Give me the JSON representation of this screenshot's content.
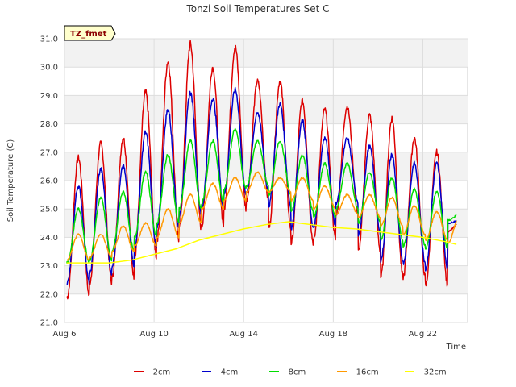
{
  "chart_data": {
    "type": "line",
    "title": "Tonzi Soil Temperatures Set C",
    "xlabel": "Time",
    "ylabel": "Soil Temperature (C)",
    "badge": "TZ_fmet",
    "ylim": [
      21.0,
      31.0
    ],
    "y_ticks": [
      "21.0",
      "22.0",
      "23.0",
      "24.0",
      "25.0",
      "26.0",
      "27.0",
      "28.0",
      "29.0",
      "30.0",
      "31.0"
    ],
    "x_range_days": [
      6,
      24
    ],
    "x_ticks": [
      {
        "label": "Aug 6",
        "day": 6
      },
      {
        "label": "Aug 10",
        "day": 10
      },
      {
        "label": "Aug 14",
        "day": 14
      },
      {
        "label": "Aug 18",
        "day": 18
      },
      {
        "label": "Aug 22",
        "day": 22
      }
    ],
    "grid": true,
    "legend_position": "bottom",
    "series": [
      {
        "name": "-2cm",
        "color": "#dd0000",
        "x_start_day": 6.1,
        "x_end_day": 23.5,
        "daily_max": [
          26.8,
          27.3,
          27.5,
          29.1,
          30.2,
          30.8,
          30.0,
          30.7,
          29.5,
          29.5,
          28.8,
          28.5,
          28.6,
          28.3,
          28.2,
          27.5,
          27.0,
          24.5
        ],
        "daily_min": [
          21.9,
          22.4,
          22.6,
          23.3,
          23.9,
          24.3,
          24.4,
          25.0,
          25.3,
          24.3,
          23.8,
          23.9,
          24.8,
          23.5,
          22.6,
          22.6,
          22.3,
          24.2
        ]
      },
      {
        "name": "-4cm",
        "color": "#0000cc",
        "x_start_day": 6.1,
        "x_end_day": 23.5,
        "daily_max": [
          25.8,
          26.4,
          26.5,
          27.7,
          28.5,
          29.1,
          28.9,
          29.2,
          28.4,
          28.7,
          28.1,
          27.5,
          27.5,
          27.2,
          26.9,
          26.6,
          26.6,
          24.6
        ],
        "daily_min": [
          22.4,
          22.7,
          23.0,
          23.6,
          24.3,
          24.8,
          25.0,
          25.5,
          25.6,
          25.1,
          24.3,
          24.4,
          25.2,
          24.1,
          23.2,
          23.1,
          22.9,
          24.5
        ]
      },
      {
        "name": "-8cm",
        "color": "#00dd00",
        "x_start_day": 6.1,
        "x_end_day": 23.5,
        "daily_max": [
          25.0,
          25.4,
          25.6,
          26.3,
          26.9,
          27.4,
          27.4,
          27.8,
          27.4,
          27.4,
          26.9,
          26.6,
          26.6,
          26.3,
          26.1,
          25.7,
          25.6,
          24.8
        ],
        "daily_min": [
          23.1,
          23.2,
          23.5,
          24.0,
          24.5,
          25.0,
          25.2,
          25.7,
          25.8,
          25.5,
          24.9,
          24.7,
          25.0,
          24.5,
          23.9,
          23.7,
          23.6,
          24.6
        ]
      },
      {
        "name": "-16cm",
        "color": "#ff9900",
        "x_start_day": 6.1,
        "x_end_day": 23.5,
        "daily_max": [
          24.1,
          24.1,
          24.4,
          24.5,
          25.0,
          25.5,
          25.9,
          26.1,
          26.3,
          26.1,
          26.1,
          25.8,
          25.5,
          25.5,
          25.4,
          25.1,
          24.9,
          24.7
        ],
        "daily_min": [
          23.2,
          23.3,
          23.5,
          23.7,
          24.0,
          24.5,
          25.0,
          25.3,
          25.6,
          25.6,
          25.3,
          25.0,
          24.8,
          24.7,
          24.4,
          24.1,
          23.9,
          23.8
        ]
      },
      {
        "name": "-32cm",
        "color": "#ffff00",
        "x_start_day": 6.1,
        "x_end_day": 23.5,
        "points": [
          [
            6.1,
            23.1
          ],
          [
            7.0,
            23.1
          ],
          [
            8.0,
            23.1
          ],
          [
            9.0,
            23.2
          ],
          [
            10.0,
            23.4
          ],
          [
            11.0,
            23.6
          ],
          [
            12.0,
            23.9
          ],
          [
            13.0,
            24.1
          ],
          [
            14.0,
            24.3
          ],
          [
            15.0,
            24.45
          ],
          [
            16.0,
            24.55
          ],
          [
            17.0,
            24.45
          ],
          [
            18.0,
            24.35
          ],
          [
            19.0,
            24.3
          ],
          [
            20.0,
            24.2
          ],
          [
            21.0,
            24.1
          ],
          [
            22.0,
            24.0
          ],
          [
            23.0,
            23.85
          ],
          [
            23.5,
            23.75
          ]
        ]
      }
    ]
  }
}
